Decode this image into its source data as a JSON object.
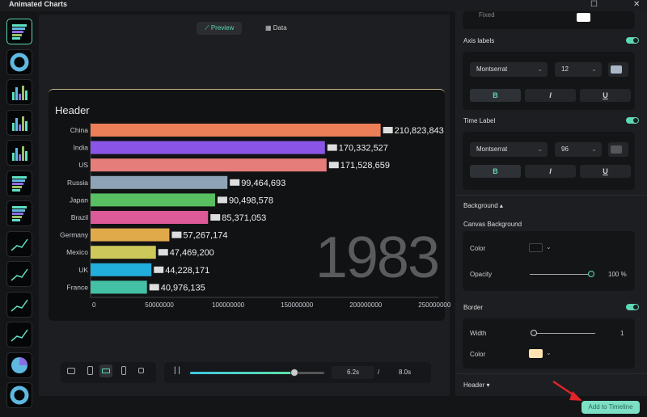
{
  "window": {
    "title": "Animated Charts"
  },
  "tabs": [
    {
      "label": "Preview",
      "icon": "line-chart-icon",
      "active": true
    },
    {
      "label": "Data",
      "icon": "table-icon"
    }
  ],
  "sidebar": {
    "thumbnails": [
      "bar-race",
      "donut",
      "column",
      "column-grouped",
      "column-stacked",
      "bar-horizontal",
      "bar-stacked",
      "line",
      "multi-line",
      "area",
      "stacked-area",
      "pie",
      "gauge"
    ],
    "selected": 0
  },
  "chart": {
    "header": "Header",
    "time_label": "1983",
    "chart_data": {
      "type": "bar",
      "orientation": "horizontal",
      "categories": [
        "China",
        "India",
        "US",
        "Russia",
        "Japan",
        "Brazil",
        "Germany",
        "Mexico",
        "UK",
        "France"
      ],
      "values": [
        210823843,
        170332527,
        171528659,
        99464693,
        90498578,
        85371053,
        57267174,
        47469200,
        44228171,
        40976135
      ],
      "value_labels": [
        "210,823,843",
        "170,332,527",
        "171,528,659",
        "99,464,693",
        "90,498,578",
        "85,371,053",
        "57,267,174",
        "47,469,200",
        "44,228,171",
        "40,976,135"
      ],
      "colors": [
        "#ec7f58",
        "#8a55e6",
        "#e57d7b",
        "#8fa3b6",
        "#58c060",
        "#dc5a98",
        "#e0aa4b",
        "#ccc85a",
        "#22aedc",
        "#44c0a4"
      ],
      "xticks": [
        "0",
        "50000000",
        "100000000",
        "150000000",
        "200000000",
        "250000000"
      ],
      "xlim": [
        0,
        250000000
      ],
      "grid": false
    }
  },
  "playback": {
    "current": "6.2s",
    "separator": "/",
    "total": "8.0s",
    "progress": 0.775,
    "aspect_options": [
      "16:9",
      "9:16",
      "wide",
      "tall",
      "square"
    ],
    "aspect_selected": 2
  },
  "panel": {
    "fixed_label": "Fixed",
    "axis_labels": {
      "label": "Axis labels",
      "enabled": true,
      "font": "Montserrat",
      "size": "12",
      "color": "#a9b7c6"
    },
    "time_label": {
      "label": "Time Label",
      "enabled": true,
      "font": "Montserrat",
      "size": "96",
      "color": "#555658"
    },
    "style_buttons": {
      "bold": "B",
      "italic": "I",
      "underline": "U"
    },
    "background": {
      "label": "Background",
      "canvas_label": "Canvas Background",
      "color_label": "Color",
      "color": "#111214",
      "opacity_label": "Opacity",
      "opacity": "100 %",
      "opacity_value": 1.0
    },
    "border": {
      "label": "Border",
      "enabled": true,
      "width_label": "Width",
      "width": "1",
      "color_label": "Color",
      "color": "#fde4b0"
    },
    "header": {
      "label": "Header"
    }
  },
  "add_button": "Add to Timeline"
}
